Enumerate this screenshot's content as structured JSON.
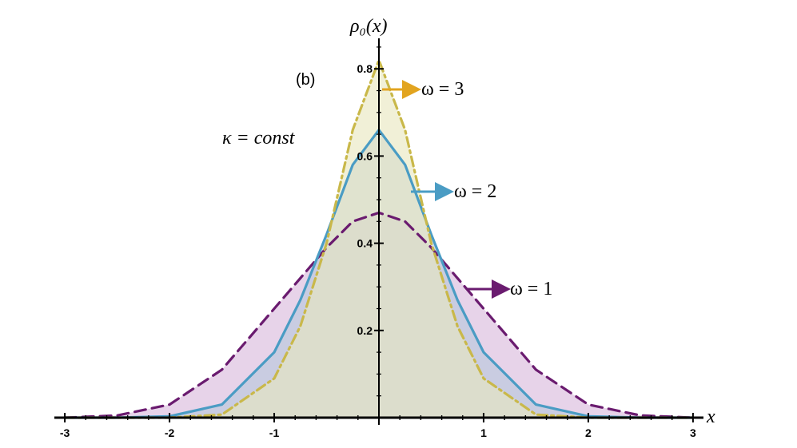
{
  "chart_data": {
    "type": "area",
    "panel_label": "(b)",
    "ylabel": "ρ₀(x)",
    "xlabel": "x",
    "xlim": [
      -3.1,
      3.1
    ],
    "ylim": [
      0,
      0.87
    ],
    "x_ticks": [
      -3,
      -2,
      -1,
      1,
      2,
      3
    ],
    "x_tick_labels": [
      "-3",
      "-2",
      "-1",
      "1",
      "2",
      "3"
    ],
    "y_ticks": [
      0.2,
      0.4,
      0.6,
      0.8
    ],
    "y_tick_labels": [
      "0.2",
      "0.4",
      "0.6",
      "0.8"
    ],
    "grid": false,
    "legend": "none",
    "annotation": "κ = const",
    "series": [
      {
        "name": "ω = 1",
        "color": "#6a1b6f",
        "fill": "#d8b8dc",
        "line_style": "dashed",
        "x": [
          -3,
          -2.5,
          -2,
          -1.5,
          -1,
          -0.75,
          -0.5,
          -0.25,
          0,
          0.25,
          0.5,
          0.75,
          1,
          1.5,
          2,
          2.5,
          3
        ],
        "y": [
          0.0,
          0.005,
          0.03,
          0.11,
          0.25,
          0.32,
          0.39,
          0.45,
          0.47,
          0.45,
          0.39,
          0.32,
          0.25,
          0.11,
          0.03,
          0.005,
          0.0
        ]
      },
      {
        "name": "ω = 2",
        "color": "#4a9cc4",
        "fill": "#b7c8dc",
        "line_style": "solid",
        "x": [
          -3,
          -2.5,
          -2,
          -1.5,
          -1,
          -0.75,
          -0.5,
          -0.25,
          0,
          0.25,
          0.5,
          0.75,
          1,
          1.5,
          2,
          2.5,
          3
        ],
        "y": [
          0.0,
          0.0,
          0.003,
          0.03,
          0.15,
          0.27,
          0.42,
          0.58,
          0.66,
          0.58,
          0.42,
          0.27,
          0.15,
          0.03,
          0.003,
          0.0,
          0.0
        ]
      },
      {
        "name": "ω = 3",
        "color": "#c9b84a",
        "fill": "#e9e6bf",
        "line_style": "dashdot",
        "x": [
          -3,
          -2.5,
          -2,
          -1.5,
          -1,
          -0.75,
          -0.5,
          -0.25,
          0,
          0.25,
          0.5,
          0.75,
          1,
          1.5,
          2,
          2.5,
          3
        ],
        "y": [
          0.0,
          0.0,
          0.0,
          0.007,
          0.09,
          0.21,
          0.4,
          0.66,
          0.82,
          0.66,
          0.4,
          0.21,
          0.09,
          0.007,
          0.0,
          0.0,
          0.0
        ]
      }
    ],
    "curve_labels": [
      {
        "text": "ω = 3",
        "color": "#e2a41f"
      },
      {
        "text": "ω = 2",
        "color": "#4a9cc4"
      },
      {
        "text": "ω = 1",
        "color": "#6a1b6f"
      }
    ]
  }
}
